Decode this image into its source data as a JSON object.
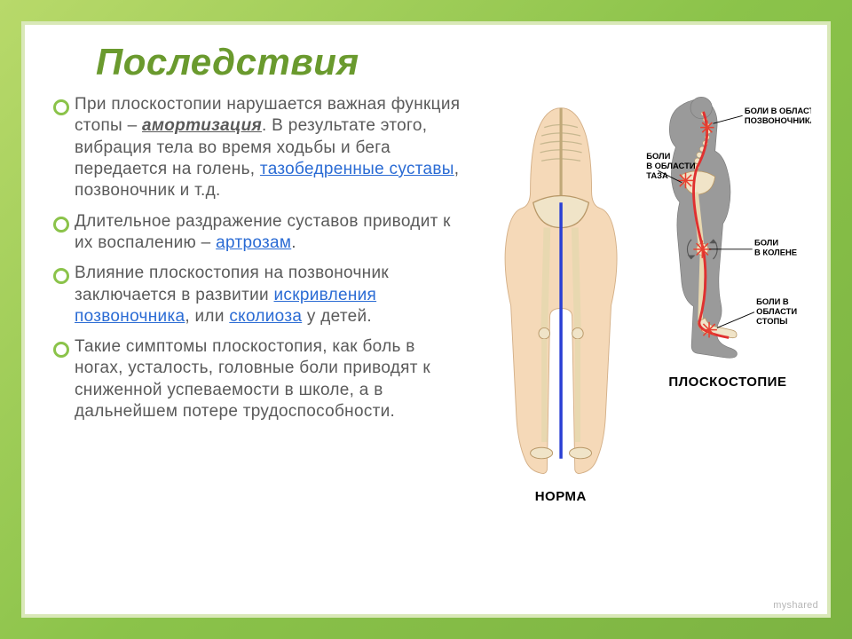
{
  "title": "Последствия",
  "bullets": [
    {
      "parts": [
        {
          "t": " При плоскостопии нарушается важная функция стопы – "
        },
        {
          "t": "амортизация",
          "cls": "u b i"
        },
        {
          "t": ". В результате этого, вибрация тела во время ходьбы и бега передается на голень, "
        },
        {
          "t": "тазобедренные суставы",
          "cls": "lnk"
        },
        {
          "t": ", позвоночник и т.д."
        }
      ]
    },
    {
      "parts": [
        {
          "t": " Длительное раздражение суставов приводит к их воспалению – "
        },
        {
          "t": "артрозам",
          "cls": "lnk"
        },
        {
          "t": "."
        }
      ]
    },
    {
      "parts": [
        {
          "t": "Влияние плоскостопия на позвоночник заключается в развитии "
        },
        {
          "t": "искривления позвоночника",
          "cls": "lnk"
        },
        {
          "t": ", или "
        },
        {
          "t": "сколиоза",
          "cls": "lnk"
        },
        {
          "t": " у детей."
        }
      ]
    },
    {
      "parts": [
        {
          "t": "Такие симптомы плоскостопия, как боль в ногах, усталость, головные боли приводят к сниженной успеваемости в школе, а в дальнейшем потере трудоспособности."
        }
      ]
    }
  ],
  "figure": {
    "norm_caption": "НОРМА",
    "flat_caption": "ПЛОСКОСТОПИЕ",
    "annotations": {
      "spine": "БОЛИ В ОБЛАСТИ\nПОЗВОНОЧНИКА",
      "pelvis": "БОЛИ\nВ ОБЛАСТИ\nТАЗА",
      "knee": "БОЛИ\nВ КОЛЕНЕ",
      "foot": "БОЛИ В\nОБЛАСТИ\nСТОПЫ"
    },
    "colors": {
      "skin": "#f5d9b8",
      "bone": "#f0e4c8",
      "bone_stroke": "#b89868",
      "spine_line": "#e03030",
      "axis_norm": "#2a3fd4",
      "body_grey": "#9a9a9a",
      "pain_red": "#e84030"
    }
  },
  "watermark": "myshared"
}
